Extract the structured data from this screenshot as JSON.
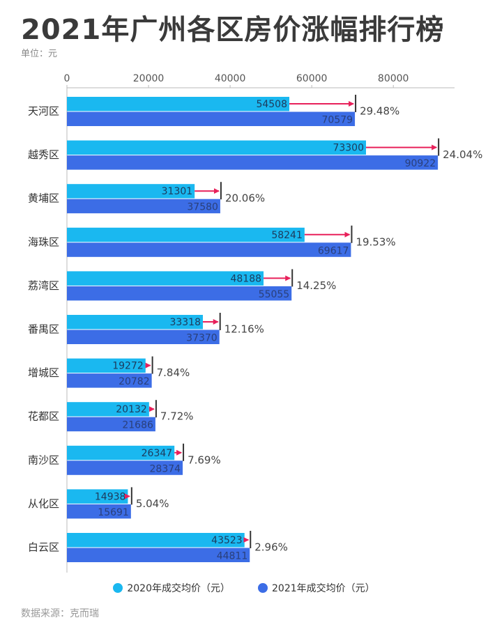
{
  "title": "2021年广州各区房价涨幅排行榜",
  "unit_label": "单位：元",
  "source_label": "数据来源：克而瑞",
  "colors": {
    "series_2020": "#1ab8f0",
    "series_2021": "#3c6de6",
    "arrow": "#e8205a",
    "marker": "#333333",
    "axis_text": "#555555",
    "grid": "#bbbbbb"
  },
  "chart_data": {
    "type": "bar",
    "orientation": "horizontal",
    "title": "2021年广州各区房价涨幅排行榜",
    "xlim": [
      0,
      95000
    ],
    "xticks": [
      0,
      20000,
      40000,
      60000,
      80000
    ],
    "xtick_labels": [
      "0",
      "20000",
      "40000",
      "60000",
      "80000"
    ],
    "categories": [
      "天河区",
      "越秀区",
      "黄埔区",
      "海珠区",
      "荔湾区",
      "番禺区",
      "增城区",
      "花都区",
      "南沙区",
      "从化区",
      "白云区"
    ],
    "series": [
      {
        "name": "2020年成交均价（元）",
        "values": [
          54508,
          73300,
          31301,
          58241,
          48188,
          33318,
          19272,
          20132,
          26347,
          14938,
          43523
        ]
      },
      {
        "name": "2021年成交均价（元）",
        "values": [
          70579,
          90922,
          37580,
          69617,
          55055,
          37370,
          20782,
          21686,
          28374,
          15691,
          44811
        ]
      }
    ],
    "growth_labels": [
      "29.48%",
      "24.04%",
      "20.06%",
      "19.53%",
      "14.25%",
      "12.16%",
      "7.84%",
      "7.72%",
      "7.69%",
      "5.04%",
      "2.96%"
    ],
    "legend_position": "bottom"
  }
}
